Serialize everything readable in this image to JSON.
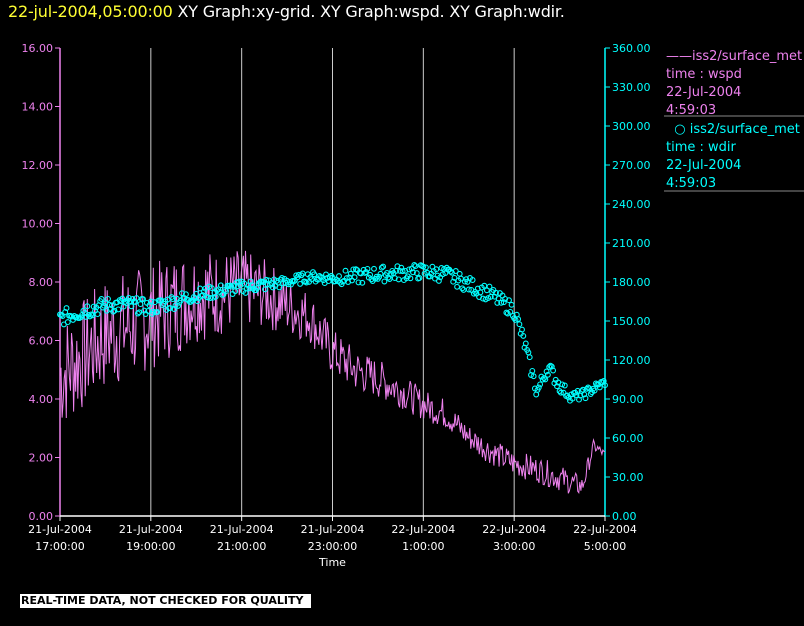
{
  "title": {
    "timestamp": "22-jul-2004,05:00:00",
    "graphs": "  XY Graph:xy-grid.  XY Graph:wspd.  XY Graph:wdir."
  },
  "legend": [
    {
      "marker": "line",
      "name": "iss2/surface_met",
      "var": "time : wspd",
      "date": "22-Jul-2004",
      "time": "4:59:03",
      "color": "#ee82ee"
    },
    {
      "marker": "circle",
      "name": "iss2/surface_met",
      "var": "time : wdir",
      "date": "22-Jul-2004",
      "time": "4:59:03",
      "color": "#00ffff"
    }
  ],
  "watermark": "REAL-TIME DATA, NOT CHECKED FOR QUALITY",
  "chart_data": {
    "type": "line",
    "xlabel": "Time",
    "x_range_hours": [
      17,
      29
    ],
    "x_ticks": [
      {
        "date": "21-Jul-2004",
        "time": "17:00:00"
      },
      {
        "date": "21-Jul-2004",
        "time": "19:00:00"
      },
      {
        "date": "21-Jul-2004",
        "time": "21:00:00"
      },
      {
        "date": "21-Jul-2004",
        "time": "23:00:00"
      },
      {
        "date": "22-Jul-2004",
        "time": "1:00:00"
      },
      {
        "date": "22-Jul-2004",
        "time": "3:00:00"
      },
      {
        "date": "22-Jul-2004",
        "time": "5:00:00"
      }
    ],
    "grid": "vertical",
    "y_left": {
      "min": 0,
      "max": 16,
      "ticks": [
        "0.00",
        "2.00",
        "4.00",
        "6.00",
        "8.00",
        "10.00",
        "12.00",
        "14.00",
        "16.00"
      ],
      "color": "#ee82ee"
    },
    "y_right": {
      "min": 0,
      "max": 360,
      "ticks": [
        "0.00",
        "30.00",
        "60.00",
        "90.00",
        "120.00",
        "150.00",
        "180.00",
        "210.00",
        "240.00",
        "270.00",
        "300.00",
        "330.00",
        "360.00"
      ],
      "color": "#00ffff"
    },
    "series": [
      {
        "name": "wspd",
        "axis": "left",
        "style": "line",
        "color": "#ee82ee",
        "x": [
          "21-Jul-2004 17:00",
          "21-Jul-2004 17:30",
          "21-Jul-2004 18:00",
          "21-Jul-2004 18:30",
          "21-Jul-2004 19:00",
          "21-Jul-2004 19:30",
          "21-Jul-2004 20:00",
          "21-Jul-2004 20:30",
          "21-Jul-2004 21:00",
          "21-Jul-2004 21:30",
          "21-Jul-2004 22:00",
          "21-Jul-2004 22:30",
          "21-Jul-2004 23:00",
          "21-Jul-2004 23:30",
          "22-Jul-2004 00:00",
          "22-Jul-2004 00:30",
          "22-Jul-2004 01:00",
          "22-Jul-2004 01:30",
          "22-Jul-2004 02:00",
          "22-Jul-2004 02:30",
          "22-Jul-2004 03:00",
          "22-Jul-2004 03:30",
          "22-Jul-2004 04:00",
          "22-Jul-2004 04:30",
          "22-Jul-2004 04:45",
          "22-Jul-2004 05:00"
        ],
        "y": [
          4.8,
          5.5,
          6.2,
          6.5,
          6.8,
          7.2,
          7.6,
          7.6,
          7.8,
          7.6,
          7.2,
          6.8,
          5.6,
          5.0,
          4.7,
          4.3,
          3.8,
          3.5,
          2.7,
          2.2,
          1.8,
          1.6,
          1.3,
          1.0,
          2.4,
          2.1
        ],
        "noise": [
          1.3,
          1.3,
          1.3,
          1.3,
          1.2,
          1.2,
          1.1,
          1.0,
          0.9,
          0.8,
          0.7,
          0.6,
          0.55,
          0.5,
          0.45,
          0.4,
          0.35,
          0.35,
          0.3,
          0.3,
          0.3,
          0.3,
          0.3,
          0.25,
          0.15,
          0.1
        ]
      },
      {
        "name": "wdir",
        "axis": "right",
        "style": "circle",
        "color": "#00ffff",
        "x": [
          "21-Jul-2004 17:00",
          "21-Jul-2004 17:30",
          "21-Jul-2004 18:00",
          "21-Jul-2004 18:30",
          "21-Jul-2004 19:00",
          "21-Jul-2004 19:30",
          "21-Jul-2004 20:00",
          "21-Jul-2004 20:30",
          "21-Jul-2004 21:00",
          "21-Jul-2004 21:30",
          "21-Jul-2004 22:00",
          "21-Jul-2004 22:30",
          "21-Jul-2004 23:00",
          "21-Jul-2004 23:30",
          "22-Jul-2004 00:00",
          "22-Jul-2004 00:30",
          "22-Jul-2004 01:00",
          "22-Jul-2004 01:30",
          "22-Jul-2004 02:00",
          "22-Jul-2004 02:30",
          "22-Jul-2004 03:00",
          "22-Jul-2004 03:15",
          "22-Jul-2004 03:30",
          "22-Jul-2004 03:45",
          "22-Jul-2004 04:00",
          "22-Jul-2004 04:15",
          "22-Jul-2004 04:30",
          "22-Jul-2004 04:45",
          "22-Jul-2004 05:00"
        ],
        "y": [
          152,
          158,
          162,
          163,
          160,
          165,
          170,
          173,
          176,
          178,
          180,
          184,
          183,
          184,
          186,
          187,
          188,
          186,
          178,
          170,
          158,
          130,
          95,
          115,
          100,
          92,
          93,
          98,
          103
        ],
        "noise": [
          6,
          7,
          6,
          6,
          6,
          6,
          5,
          5,
          5,
          5,
          4,
          4,
          5,
          6,
          6,
          6,
          6,
          6,
          6,
          6,
          6,
          6,
          5,
          6,
          5,
          4,
          4,
          4,
          3
        ]
      }
    ]
  }
}
